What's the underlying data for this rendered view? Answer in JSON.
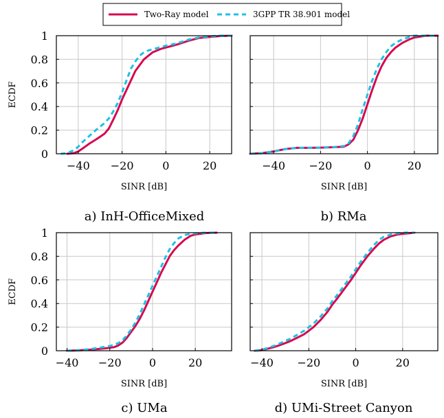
{
  "legend": {
    "placement": "top-center",
    "entries": [
      {
        "label": "Two-Ray model",
        "color": "#d6084f",
        "style": "solid"
      },
      {
        "label": "3GPP TR 38.901 model",
        "color": "#1ec0e6",
        "style": "dashed"
      }
    ]
  },
  "chart_data": [
    {
      "type": "line",
      "caption": "a) InH-OfficeMixed",
      "xlabel": "SINR [dB]",
      "ylabel": "ECDF",
      "xlim": [
        -50,
        30
      ],
      "ylim": [
        0,
        1
      ],
      "xticks": [
        -40,
        -20,
        0,
        20
      ],
      "yticks": [
        0,
        0.2,
        0.4,
        0.6,
        0.8,
        1
      ],
      "ytick_labels": [
        "0",
        "0.2",
        "0.4",
        "0.6",
        "0.8",
        "1"
      ],
      "grid": true,
      "series": [
        {
          "name": "Two-Ray model",
          "color": "#d6084f",
          "dash": "solid",
          "x": [
            -45,
            -42,
            -40,
            -38,
            -35,
            -32,
            -30,
            -28,
            -26,
            -24,
            -22,
            -20,
            -18,
            -16,
            -14,
            -12,
            -10,
            -8,
            -6,
            -4,
            -2,
            0,
            2,
            5,
            10,
            15,
            20,
            25,
            30
          ],
          "y": [
            0,
            0.005,
            0.02,
            0.045,
            0.085,
            0.12,
            0.145,
            0.17,
            0.215,
            0.29,
            0.37,
            0.46,
            0.54,
            0.62,
            0.7,
            0.75,
            0.8,
            0.83,
            0.86,
            0.875,
            0.89,
            0.9,
            0.91,
            0.925,
            0.955,
            0.98,
            0.99,
            0.997,
            1
          ]
        },
        {
          "name": "3GPP TR 38.901 model",
          "color": "#1ec0e6",
          "dash": "dashed",
          "x": [
            -48,
            -45,
            -42,
            -40,
            -38,
            -35,
            -32,
            -30,
            -28,
            -26,
            -24,
            -22,
            -20,
            -18,
            -16,
            -14,
            -12,
            -10,
            -8,
            -6,
            -4,
            -2,
            0,
            5,
            10,
            15,
            20,
            25,
            30
          ],
          "y": [
            0,
            0.005,
            0.03,
            0.06,
            0.1,
            0.15,
            0.2,
            0.23,
            0.26,
            0.3,
            0.36,
            0.43,
            0.52,
            0.62,
            0.72,
            0.78,
            0.83,
            0.86,
            0.875,
            0.885,
            0.895,
            0.905,
            0.915,
            0.935,
            0.965,
            0.985,
            0.995,
            1,
            1
          ]
        }
      ]
    },
    {
      "type": "line",
      "caption": "b) RMa",
      "xlabel": "SINR [dB]",
      "ylabel": "",
      "xlim": [
        -50,
        30
      ],
      "ylim": [
        0,
        1
      ],
      "xticks": [
        -40,
        -20,
        0,
        20
      ],
      "yticks": [
        0,
        0.2,
        0.4,
        0.6,
        0.8,
        1
      ],
      "ytick_labels": [],
      "grid": true,
      "series": [
        {
          "name": "Two-Ray model",
          "color": "#d6084f",
          "dash": "solid",
          "x": [
            -50,
            -45,
            -40,
            -35,
            -30,
            -25,
            -20,
            -15,
            -10,
            -8,
            -6,
            -4,
            -2,
            0,
            2,
            4,
            6,
            8,
            10,
            12,
            15,
            18,
            20,
            25,
            30
          ],
          "y": [
            0,
            0.005,
            0.02,
            0.04,
            0.05,
            0.05,
            0.052,
            0.055,
            0.06,
            0.08,
            0.12,
            0.2,
            0.3,
            0.42,
            0.54,
            0.65,
            0.74,
            0.81,
            0.86,
            0.9,
            0.94,
            0.97,
            0.985,
            1,
            1
          ]
        },
        {
          "name": "3GPP TR 38.901 model",
          "color": "#1ec0e6",
          "dash": "dashed",
          "x": [
            -50,
            -45,
            -40,
            -35,
            -30,
            -25,
            -20,
            -15,
            -10,
            -8,
            -6,
            -4,
            -2,
            0,
            2,
            4,
            6,
            8,
            10,
            12,
            15,
            18,
            20,
            25,
            30
          ],
          "y": [
            0,
            0.005,
            0.02,
            0.04,
            0.05,
            0.05,
            0.052,
            0.055,
            0.065,
            0.09,
            0.15,
            0.25,
            0.38,
            0.5,
            0.62,
            0.72,
            0.8,
            0.86,
            0.91,
            0.94,
            0.97,
            0.99,
            1,
            1,
            1
          ]
        }
      ]
    },
    {
      "type": "line",
      "caption": "c) UMa",
      "xlabel": "SINR [dB]",
      "ylabel": "ECDF",
      "xlim": [
        -45,
        37
      ],
      "ylim": [
        0,
        1
      ],
      "xticks": [
        -40,
        -20,
        0,
        20
      ],
      "yticks": [
        0,
        0.2,
        0.4,
        0.6,
        0.8,
        1
      ],
      "ytick_labels": [
        "0",
        "0.2",
        "0.4",
        "0.6",
        "0.8",
        "1"
      ],
      "grid": true,
      "series": [
        {
          "name": "Two-Ray model",
          "color": "#d6084f",
          "dash": "solid",
          "x": [
            -40,
            -35,
            -30,
            -25,
            -20,
            -18,
            -16,
            -14,
            -12,
            -10,
            -8,
            -6,
            -4,
            -2,
            0,
            2,
            4,
            6,
            8,
            10,
            12,
            15,
            18,
            20,
            25,
            30
          ],
          "y": [
            0,
            0.003,
            0.008,
            0.015,
            0.025,
            0.03,
            0.045,
            0.07,
            0.11,
            0.16,
            0.21,
            0.27,
            0.34,
            0.42,
            0.5,
            0.58,
            0.66,
            0.73,
            0.8,
            0.85,
            0.89,
            0.94,
            0.975,
            0.985,
            0.997,
            1
          ]
        },
        {
          "name": "3GPP TR 38.901 model",
          "color": "#1ec0e6",
          "dash": "dashed",
          "x": [
            -40,
            -35,
            -30,
            -25,
            -20,
            -18,
            -16,
            -14,
            -12,
            -10,
            -8,
            -6,
            -4,
            -2,
            0,
            2,
            4,
            6,
            8,
            10,
            12,
            15,
            18,
            20,
            25,
            30
          ],
          "y": [
            0,
            0.005,
            0.012,
            0.025,
            0.04,
            0.05,
            0.065,
            0.09,
            0.13,
            0.18,
            0.24,
            0.31,
            0.39,
            0.47,
            0.55,
            0.63,
            0.71,
            0.79,
            0.86,
            0.91,
            0.95,
            0.98,
            0.99,
            0.995,
            1,
            1
          ]
        }
      ]
    },
    {
      "type": "line",
      "caption": "d) UMi-Street Canyon",
      "xlabel": "SINR [dB]",
      "ylabel": "",
      "xlim": [
        -45,
        35
      ],
      "ylim": [
        0,
        1
      ],
      "xticks": [
        -40,
        -20,
        0,
        20
      ],
      "yticks": [
        0,
        0.2,
        0.4,
        0.6,
        0.8,
        1
      ],
      "ytick_labels": [],
      "grid": true,
      "series": [
        {
          "name": "Two-Ray model",
          "color": "#d6084f",
          "dash": "solid",
          "x": [
            -43,
            -40,
            -38,
            -35,
            -32,
            -30,
            -28,
            -25,
            -22,
            -20,
            -18,
            -15,
            -12,
            -10,
            -8,
            -5,
            -2,
            0,
            2,
            5,
            8,
            10,
            12,
            15,
            18,
            20,
            25
          ],
          "y": [
            0,
            0.005,
            0.015,
            0.03,
            0.05,
            0.065,
            0.08,
            0.11,
            0.14,
            0.17,
            0.2,
            0.26,
            0.33,
            0.39,
            0.44,
            0.52,
            0.6,
            0.66,
            0.72,
            0.8,
            0.87,
            0.91,
            0.94,
            0.97,
            0.985,
            0.99,
            1
          ]
        },
        {
          "name": "3GPP TR 38.901 model",
          "color": "#1ec0e6",
          "dash": "dashed",
          "x": [
            -43,
            -40,
            -38,
            -35,
            -32,
            -30,
            -28,
            -25,
            -22,
            -20,
            -18,
            -15,
            -12,
            -10,
            -8,
            -5,
            -2,
            0,
            2,
            5,
            8,
            10,
            12,
            15,
            18,
            20,
            25
          ],
          "y": [
            0,
            0.01,
            0.02,
            0.04,
            0.065,
            0.085,
            0.1,
            0.135,
            0.17,
            0.2,
            0.23,
            0.29,
            0.36,
            0.42,
            0.47,
            0.55,
            0.63,
            0.69,
            0.75,
            0.83,
            0.9,
            0.94,
            0.965,
            0.985,
            0.995,
            1,
            1
          ]
        }
      ]
    }
  ]
}
